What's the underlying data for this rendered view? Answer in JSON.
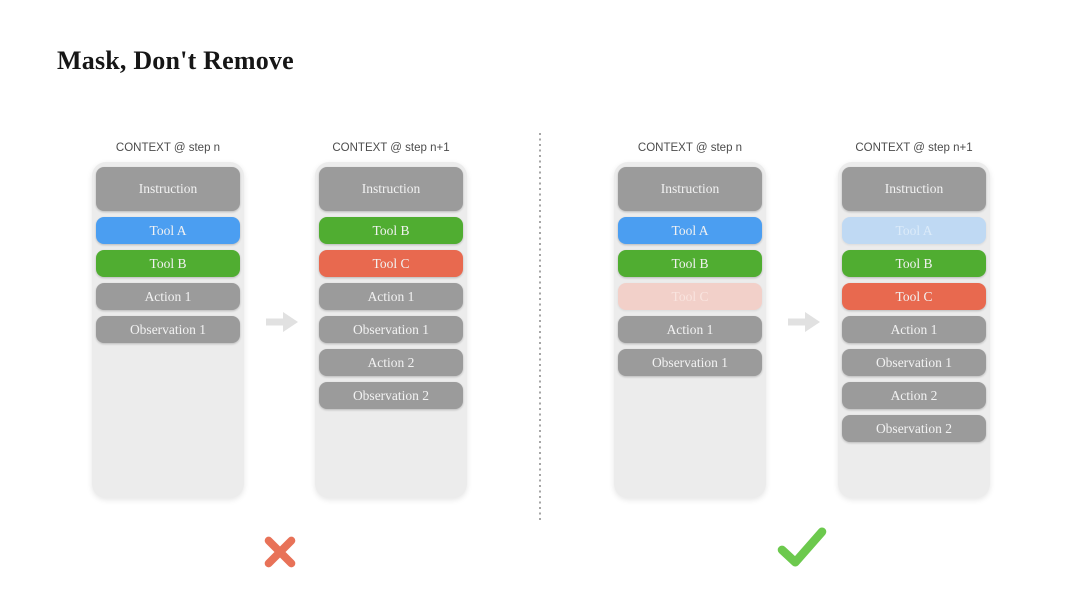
{
  "title": "Mask, Don't Remove",
  "groups": [
    {
      "name": "remove-approach",
      "verdict": "cross",
      "columns": [
        {
          "header": "CONTEXT @ step n",
          "blocks": [
            {
              "label": "Instruction",
              "type": "instruction"
            },
            {
              "label": "Tool A",
              "type": "blue"
            },
            {
              "label": "Tool B",
              "type": "green"
            },
            {
              "label": "Action 1",
              "type": "gray"
            },
            {
              "label": "Observation 1",
              "type": "gray"
            }
          ]
        },
        {
          "header": "CONTEXT @ step n+1",
          "blocks": [
            {
              "label": "Instruction",
              "type": "instruction"
            },
            {
              "label": "Tool B",
              "type": "green"
            },
            {
              "label": "Tool C",
              "type": "red"
            },
            {
              "label": "Action 1",
              "type": "gray"
            },
            {
              "label": "Observation 1",
              "type": "gray"
            },
            {
              "label": "Action 2",
              "type": "gray"
            },
            {
              "label": "Observation 2",
              "type": "gray"
            }
          ]
        }
      ]
    },
    {
      "name": "mask-approach",
      "verdict": "check",
      "columns": [
        {
          "header": "CONTEXT @ step n",
          "blocks": [
            {
              "label": "Instruction",
              "type": "instruction"
            },
            {
              "label": "Tool A",
              "type": "blue"
            },
            {
              "label": "Tool B",
              "type": "green"
            },
            {
              "label": "Tool C",
              "type": "masked-red"
            },
            {
              "label": "Action 1",
              "type": "gray"
            },
            {
              "label": "Observation 1",
              "type": "gray"
            }
          ]
        },
        {
          "header": "CONTEXT @ step n+1",
          "blocks": [
            {
              "label": "Instruction",
              "type": "instruction"
            },
            {
              "label": "Tool A",
              "type": "masked-blue"
            },
            {
              "label": "Tool B",
              "type": "green"
            },
            {
              "label": "Tool C",
              "type": "red"
            },
            {
              "label": "Action 1",
              "type": "gray"
            },
            {
              "label": "Observation 1",
              "type": "gray"
            },
            {
              "label": "Action 2",
              "type": "gray"
            },
            {
              "label": "Observation 2",
              "type": "gray"
            }
          ]
        }
      ]
    }
  ],
  "icons": {
    "cross": "cross-icon",
    "check": "check-icon",
    "arrow": "arrow-right-icon"
  },
  "colors": {
    "title-text": "#161616",
    "header-text": "#4c4c4c",
    "container-bg": "#ececec",
    "gray": "#9b9b9b",
    "blue": "#4b9ef1",
    "green": "#50ad31",
    "red": "#e8694f",
    "masked-blue-bg": "#bfd9f3",
    "masked-blue-text": "#dcebf9",
    "masked-red-bg": "#f2d0c9",
    "masked-red-text": "#f9e4df",
    "block-text": "#f2f2f2",
    "arrow": "#e1e1e1",
    "divider": "#a6a6a6",
    "cross": "#e87258",
    "check": "#6cc94d"
  }
}
